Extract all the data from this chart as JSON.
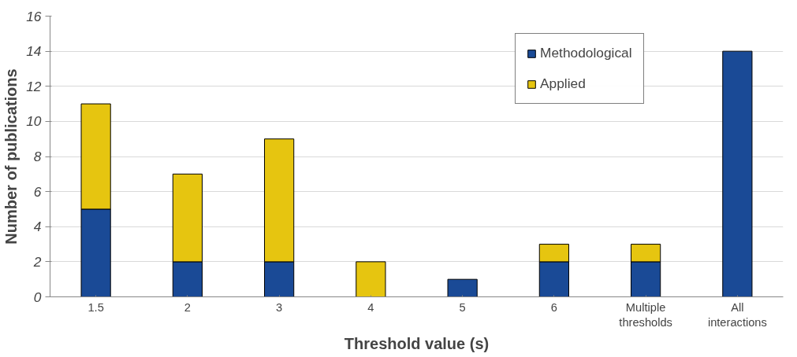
{
  "chart_data": {
    "type": "bar",
    "stacked": true,
    "xlabel": "Threshold value (s)",
    "ylabel": "Number of publications",
    "categories": [
      "1.5",
      "2",
      "3",
      "4",
      "5",
      "6",
      "Multiple thresholds",
      "All interactions"
    ],
    "series": [
      {
        "name": "Methodological",
        "color": "#1a4a96",
        "values": [
          5,
          2,
          2,
          0,
          1,
          2,
          2,
          14
        ]
      },
      {
        "name": "Applied",
        "color": "#e6c510",
        "values": [
          6,
          5,
          7,
          2,
          0,
          1,
          1,
          0
        ]
      }
    ],
    "ylim": [
      0,
      16
    ],
    "yticks": [
      0,
      2,
      4,
      6,
      8,
      10,
      12,
      14,
      16
    ],
    "grid": "y",
    "legend": "top right"
  }
}
